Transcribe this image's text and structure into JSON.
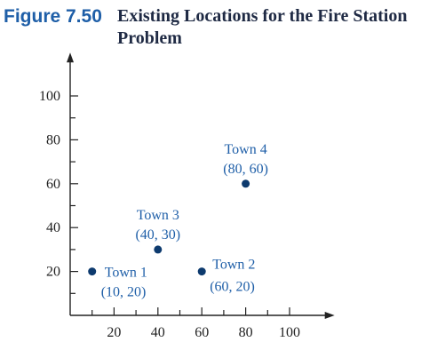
{
  "figure": {
    "label": "Figure 7.50",
    "title": "Existing Locations for the Fire Station Problem"
  },
  "colors": {
    "label_blue": "#1f5fa8",
    "title_dark": "#1f2a44",
    "axis": "#222222",
    "point": "#0d3a6e"
  },
  "chart_data": {
    "type": "scatter",
    "title": "",
    "xlabel": "",
    "ylabel": "",
    "xlim": [
      0,
      110
    ],
    "ylim": [
      0,
      110
    ],
    "x_ticks": [
      20,
      40,
      60,
      80,
      100
    ],
    "y_ticks": [
      20,
      40,
      60,
      80,
      100
    ],
    "minor_step": 10,
    "grid": false,
    "points": [
      {
        "name": "Town 1",
        "coord": "(10, 20)",
        "x": 10,
        "y": 20,
        "label_side": "right-low"
      },
      {
        "name": "Town 2",
        "coord": "(60, 20)",
        "x": 60,
        "y": 20,
        "label_side": "right-high"
      },
      {
        "name": "Town 3",
        "coord": "(40, 30)",
        "x": 40,
        "y": 30,
        "label_side": "above"
      },
      {
        "name": "Town 4",
        "coord": "(80, 60)",
        "x": 80,
        "y": 60,
        "label_side": "above"
      }
    ]
  }
}
